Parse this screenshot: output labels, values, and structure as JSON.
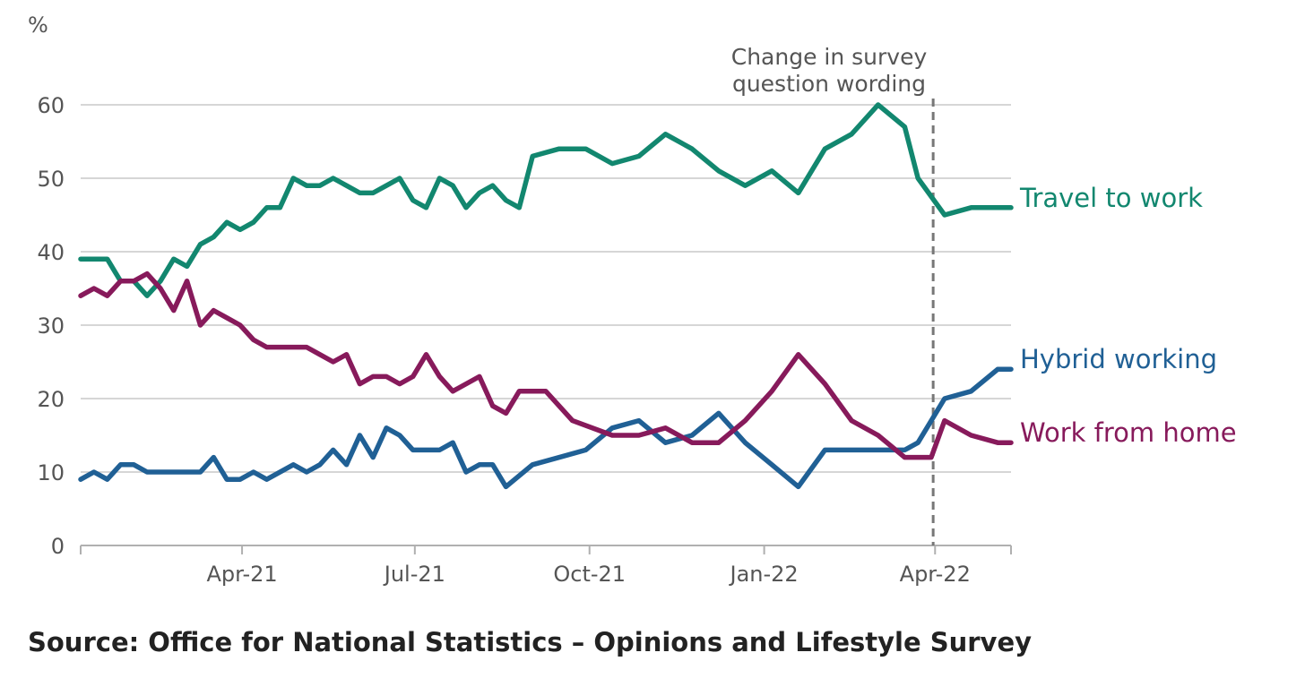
{
  "chart_data": {
    "type": "line",
    "y_unit_label": "%",
    "ylim": [
      0,
      60
    ],
    "y_ticks": [
      0,
      10,
      20,
      30,
      40,
      50,
      60
    ],
    "x_tick_labels": [
      "Apr-21",
      "Jul-21",
      "Oct-21",
      "Jan-22",
      "Apr-22"
    ],
    "x_tick_dates": [
      "2021-04-01",
      "2021-07-01",
      "2021-10-01",
      "2022-01-01",
      "2022-04-01"
    ],
    "x_range": [
      "2021-01-06",
      "2022-05-11"
    ],
    "grid": "horizontal",
    "annotation": {
      "date": "2022-03-31",
      "lines": [
        "Change in survey",
        "question wording"
      ],
      "style": "dashed vertical line"
    },
    "series": [
      {
        "name": "Travel to work",
        "color": "#12876f",
        "dates": [
          "2021-01-06",
          "2021-01-13",
          "2021-01-20",
          "2021-01-27",
          "2021-02-03",
          "2021-02-10",
          "2021-02-17",
          "2021-02-24",
          "2021-03-03",
          "2021-03-10",
          "2021-03-17",
          "2021-03-24",
          "2021-03-31",
          "2021-04-07",
          "2021-04-14",
          "2021-04-21",
          "2021-04-28",
          "2021-05-05",
          "2021-05-12",
          "2021-05-19",
          "2021-05-26",
          "2021-06-02",
          "2021-06-09",
          "2021-06-16",
          "2021-06-23",
          "2021-06-30",
          "2021-07-07",
          "2021-07-14",
          "2021-07-21",
          "2021-07-28",
          "2021-08-04",
          "2021-08-11",
          "2021-08-18",
          "2021-08-25",
          "2021-09-01",
          "2021-09-15",
          "2021-09-29",
          "2021-10-13",
          "2021-10-27",
          "2021-11-10",
          "2021-11-24",
          "2021-12-08",
          "2021-12-22",
          "2022-01-05",
          "2022-01-19",
          "2022-02-02",
          "2022-02-16",
          "2022-03-02",
          "2022-03-16",
          "2022-03-23",
          "2022-04-06",
          "2022-04-20",
          "2022-05-04",
          "2022-05-11"
        ],
        "values": [
          39,
          39,
          39,
          36,
          36,
          34,
          36,
          39,
          38,
          41,
          42,
          44,
          43,
          44,
          46,
          46,
          50,
          49,
          49,
          50,
          49,
          48,
          48,
          49,
          50,
          47,
          46,
          50,
          49,
          46,
          48,
          49,
          47,
          46,
          53,
          54,
          54,
          52,
          53,
          56,
          54,
          51,
          49,
          51,
          48,
          54,
          56,
          60,
          57,
          50,
          45,
          46,
          46,
          46
        ]
      },
      {
        "name": "Hybrid working",
        "color": "#206095",
        "dates": [
          "2021-01-06",
          "2021-01-13",
          "2021-01-20",
          "2021-01-27",
          "2021-02-03",
          "2021-02-10",
          "2021-02-24",
          "2021-03-10",
          "2021-03-17",
          "2021-03-24",
          "2021-03-31",
          "2021-04-07",
          "2021-04-14",
          "2021-04-28",
          "2021-05-05",
          "2021-05-12",
          "2021-05-19",
          "2021-05-26",
          "2021-06-02",
          "2021-06-09",
          "2021-06-16",
          "2021-06-23",
          "2021-06-30",
          "2021-07-14",
          "2021-07-21",
          "2021-07-28",
          "2021-08-04",
          "2021-08-11",
          "2021-08-18",
          "2021-09-01",
          "2021-09-29",
          "2021-10-13",
          "2021-10-27",
          "2021-11-10",
          "2021-11-24",
          "2021-12-08",
          "2021-12-22",
          "2022-01-05",
          "2022-01-19",
          "2022-02-02",
          "2022-02-16",
          "2022-03-02",
          "2022-03-16",
          "2022-03-23",
          "2022-04-06",
          "2022-04-20",
          "2022-05-04",
          "2022-05-11"
        ],
        "values": [
          9,
          10,
          9,
          11,
          11,
          10,
          10,
          10,
          12,
          9,
          9,
          10,
          9,
          11,
          10,
          11,
          13,
          11,
          15,
          12,
          16,
          15,
          13,
          13,
          14,
          10,
          11,
          11,
          8,
          11,
          13,
          16,
          17,
          14,
          15,
          18,
          14,
          11,
          8,
          13,
          13,
          13,
          13,
          14,
          20,
          21,
          24,
          24
        ]
      },
      {
        "name": "Work from home",
        "color": "#871a5b",
        "dates": [
          "2021-01-06",
          "2021-01-13",
          "2021-01-20",
          "2021-01-27",
          "2021-02-03",
          "2021-02-10",
          "2021-02-17",
          "2021-02-24",
          "2021-03-03",
          "2021-03-10",
          "2021-03-17",
          "2021-03-24",
          "2021-03-31",
          "2021-04-07",
          "2021-04-14",
          "2021-04-21",
          "2021-05-05",
          "2021-05-12",
          "2021-05-19",
          "2021-05-26",
          "2021-06-02",
          "2021-06-09",
          "2021-06-16",
          "2021-06-23",
          "2021-06-30",
          "2021-07-07",
          "2021-07-14",
          "2021-07-21",
          "2021-08-04",
          "2021-08-11",
          "2021-08-18",
          "2021-08-25",
          "2021-09-08",
          "2021-09-22",
          "2021-10-13",
          "2021-10-27",
          "2021-11-10",
          "2021-11-24",
          "2021-12-08",
          "2021-12-22",
          "2022-01-05",
          "2022-01-19",
          "2022-02-02",
          "2022-02-16",
          "2022-03-02",
          "2022-03-16",
          "2022-03-30",
          "2022-04-06",
          "2022-04-20",
          "2022-05-04",
          "2022-05-11"
        ],
        "values": [
          34,
          35,
          34,
          36,
          36,
          37,
          35,
          32,
          36,
          30,
          32,
          31,
          30,
          28,
          27,
          27,
          27,
          26,
          25,
          26,
          22,
          23,
          23,
          22,
          23,
          26,
          23,
          21,
          23,
          19,
          18,
          21,
          21,
          17,
          15,
          15,
          16,
          14,
          14,
          17,
          21,
          26,
          22,
          17,
          15,
          12,
          12,
          17,
          15,
          14,
          14
        ]
      }
    ]
  },
  "source": "Source: Office for National Statistics – Opinions and Lifestyle Survey"
}
